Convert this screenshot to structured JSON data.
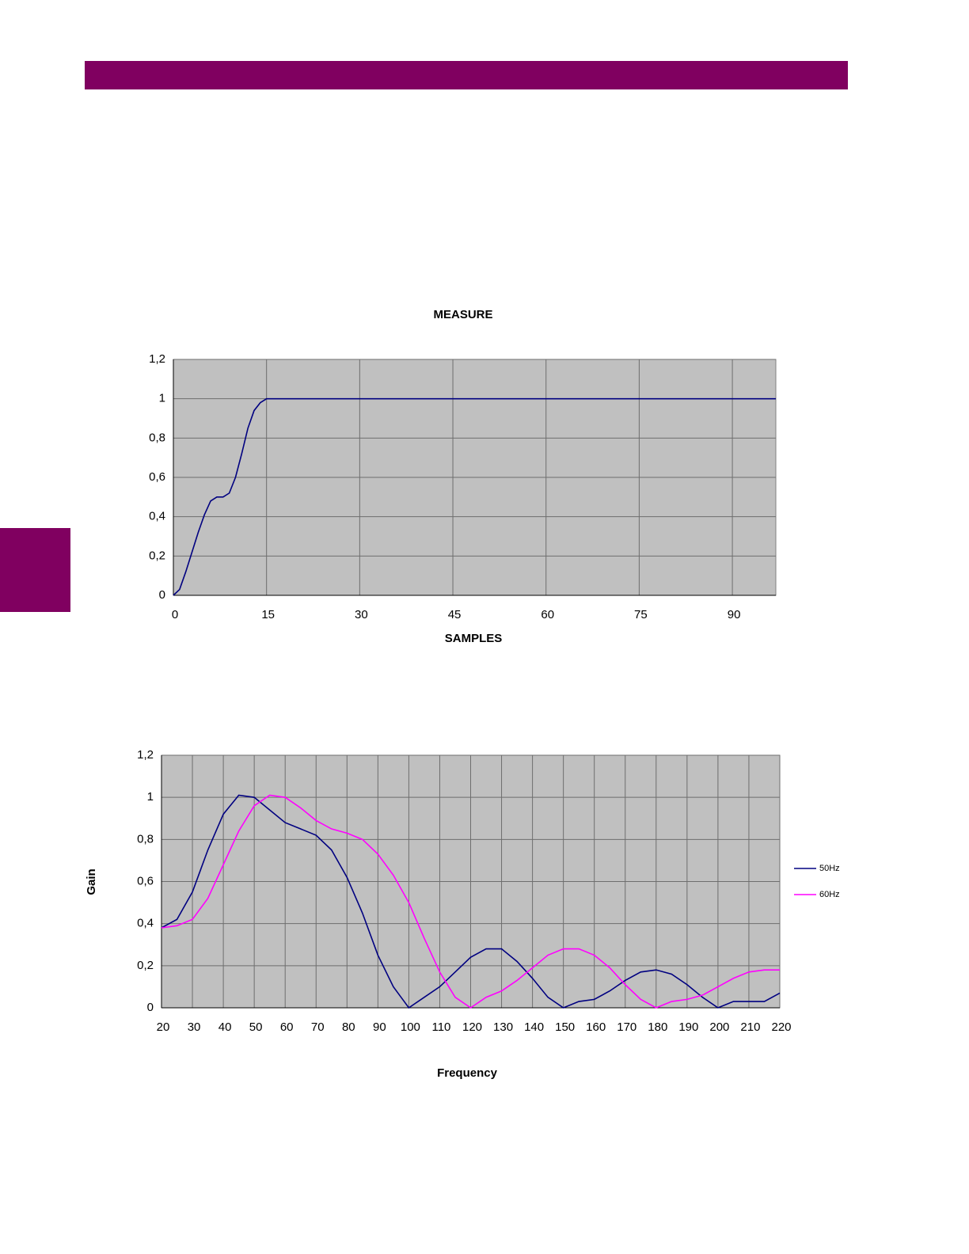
{
  "chart_data": [
    {
      "type": "line",
      "title": "MEASURE",
      "x_label": "SAMPLES",
      "x": [
        0,
        1,
        2,
        3,
        4,
        5,
        6,
        7,
        8,
        9,
        10,
        11,
        12,
        13,
        14,
        15,
        16,
        97
      ],
      "values": [
        0,
        0.03,
        0.12,
        0.22,
        0.32,
        0.41,
        0.48,
        0.5,
        0.5,
        0.52,
        0.6,
        0.72,
        0.85,
        0.94,
        0.98,
        1,
        1,
        1
      ],
      "color": "#000080",
      "xlim": [
        0,
        97
      ],
      "xticks": [
        0,
        15,
        30,
        45,
        60,
        75,
        90
      ],
      "ylim": [
        0,
        1.2
      ],
      "yticks": [
        0,
        {
          "value": 0.2,
          "label": "0,2"
        },
        {
          "value": 0.4,
          "label": "0,4"
        },
        {
          "value": 0.6,
          "label": "0,6"
        },
        {
          "value": 0.8,
          "label": "0,8"
        },
        1,
        {
          "value": 1.2,
          "label": "1,2"
        }
      ],
      "grid": true
    },
    {
      "type": "line",
      "x_label": "Frequency",
      "y_label": "Gain",
      "x": [
        20,
        25,
        30,
        35,
        40,
        45,
        50,
        55,
        60,
        65,
        70,
        75,
        80,
        85,
        90,
        95,
        100,
        105,
        110,
        115,
        120,
        125,
        130,
        135,
        140,
        145,
        150,
        155,
        160,
        165,
        170,
        175,
        180,
        185,
        190,
        195,
        200,
        205,
        210,
        215,
        220
      ],
      "series": [
        {
          "name": "50Hz",
          "color": "#000080",
          "values": [
            0.38,
            0.42,
            0.55,
            0.75,
            0.92,
            1.01,
            1.0,
            0.94,
            0.88,
            0.85,
            0.82,
            0.75,
            0.62,
            0.45,
            0.25,
            0.1,
            0,
            0.05,
            0.1,
            0.17,
            0.24,
            0.28,
            0.28,
            0.22,
            0.14,
            0.05,
            0,
            0.03,
            0.04,
            0.08,
            0.13,
            0.17,
            0.18,
            0.16,
            0.11,
            0.05,
            0,
            0.03,
            0.03,
            0.03,
            0.07
          ]
        },
        {
          "name": "60Hz",
          "color": "#ff00ff",
          "values": [
            0.38,
            0.39,
            0.42,
            0.52,
            0.68,
            0.84,
            0.96,
            1.01,
            1.0,
            0.95,
            0.89,
            0.85,
            0.83,
            0.8,
            0.73,
            0.63,
            0.5,
            0.33,
            0.17,
            0.05,
            0,
            0.05,
            0.08,
            0.13,
            0.19,
            0.25,
            0.28,
            0.28,
            0.25,
            0.19,
            0.11,
            0.04,
            0,
            0.03,
            0.04,
            0.06,
            0.1,
            0.14,
            0.17,
            0.18,
            0.18
          ]
        }
      ],
      "xlim": [
        20,
        220
      ],
      "xticks": [
        20,
        30,
        40,
        50,
        60,
        70,
        80,
        90,
        100,
        110,
        120,
        130,
        140,
        150,
        160,
        170,
        180,
        190,
        200,
        210,
        220
      ],
      "ylim": [
        0,
        1.2
      ],
      "yticks": [
        0,
        {
          "value": 0.2,
          "label": "0,2"
        },
        {
          "value": 0.4,
          "label": "0,4"
        },
        {
          "value": 0.6,
          "label": "0,6"
        },
        {
          "value": 0.8,
          "label": "0,8"
        },
        1,
        {
          "value": 1.2,
          "label": "1,2"
        }
      ],
      "grid": true,
      "legend": "right"
    }
  ]
}
